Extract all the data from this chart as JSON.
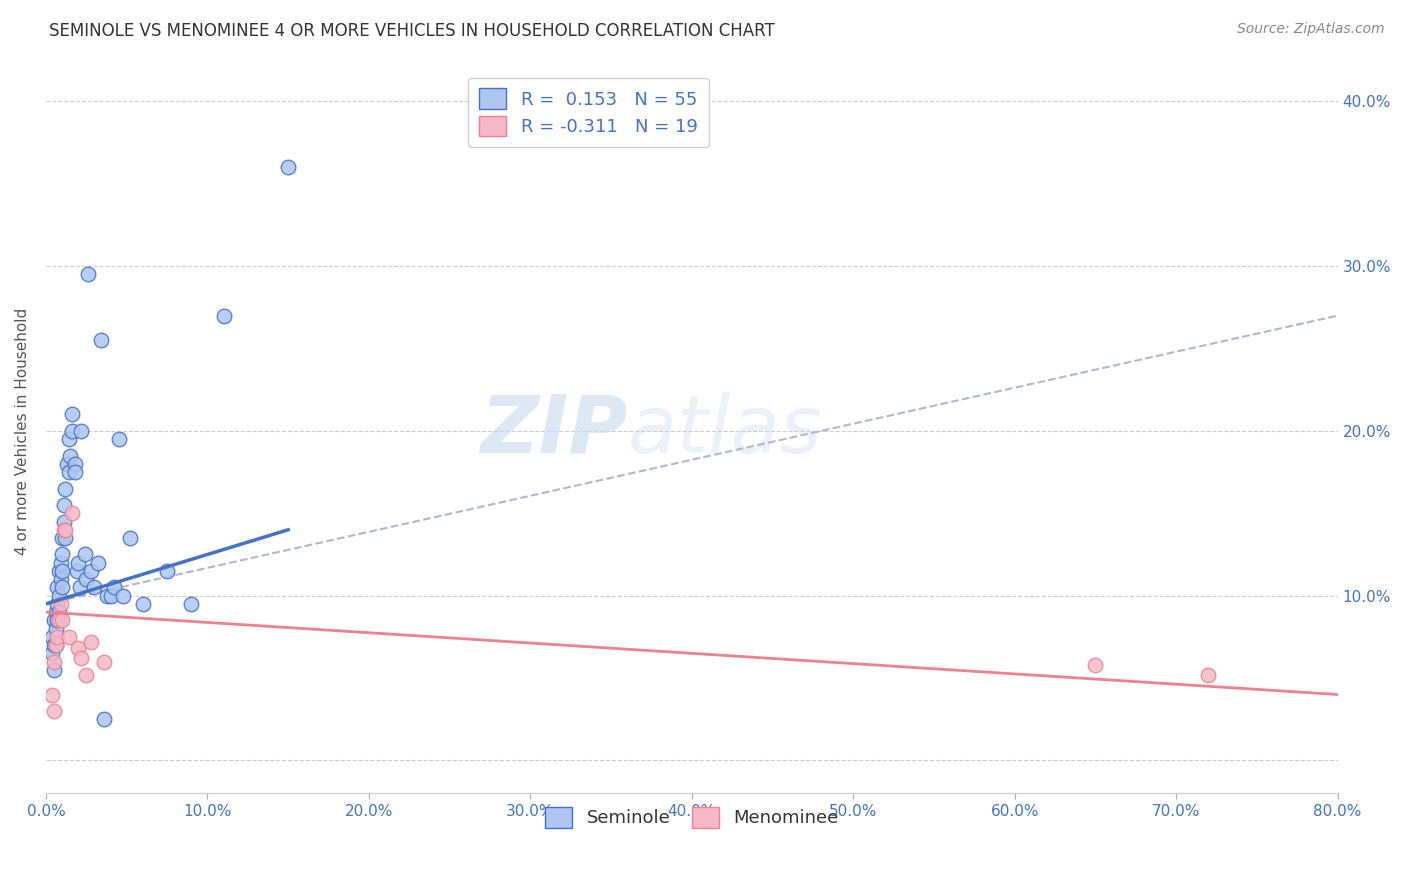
{
  "title": "SEMINOLE VS MENOMINEE 4 OR MORE VEHICLES IN HOUSEHOLD CORRELATION CHART",
  "source": "Source: ZipAtlas.com",
  "ylabel": "4 or more Vehicles in Household",
  "xlim": [
    0.0,
    0.8
  ],
  "ylim": [
    -0.02,
    0.42
  ],
  "yticks": [
    0.0,
    0.1,
    0.2,
    0.3,
    0.4
  ],
  "ytick_labels": [
    "",
    "10.0%",
    "20.0%",
    "30.0%",
    "40.0%"
  ],
  "xticks": [
    0.0,
    0.1,
    0.2,
    0.3,
    0.4,
    0.5,
    0.6,
    0.7,
    0.8
  ],
  "seminole_R": 0.153,
  "seminole_N": 55,
  "menominee_R": -0.311,
  "menominee_N": 19,
  "seminole_color": "#aec6f0",
  "menominee_color": "#f4b8c8",
  "seminole_line_color": "#4472c4",
  "menominee_line_color": "#f08090",
  "trend_line_color": "#b0b8c8",
  "watermark": "ZIPatlas",
  "seminole_x": [
    0.004,
    0.004,
    0.005,
    0.005,
    0.005,
    0.006,
    0.006,
    0.006,
    0.007,
    0.007,
    0.007,
    0.008,
    0.008,
    0.008,
    0.009,
    0.009,
    0.01,
    0.01,
    0.01,
    0.01,
    0.011,
    0.011,
    0.012,
    0.012,
    0.013,
    0.014,
    0.014,
    0.015,
    0.016,
    0.016,
    0.018,
    0.018,
    0.019,
    0.02,
    0.021,
    0.022,
    0.024,
    0.025,
    0.026,
    0.028,
    0.03,
    0.032,
    0.034,
    0.036,
    0.038,
    0.04,
    0.042,
    0.045,
    0.048,
    0.052,
    0.06,
    0.075,
    0.09,
    0.11,
    0.15
  ],
  "seminole_y": [
    0.075,
    0.065,
    0.085,
    0.07,
    0.055,
    0.09,
    0.08,
    0.07,
    0.105,
    0.095,
    0.085,
    0.115,
    0.1,
    0.09,
    0.12,
    0.11,
    0.135,
    0.125,
    0.115,
    0.105,
    0.145,
    0.155,
    0.135,
    0.165,
    0.18,
    0.195,
    0.175,
    0.185,
    0.2,
    0.21,
    0.18,
    0.175,
    0.115,
    0.12,
    0.105,
    0.2,
    0.125,
    0.11,
    0.295,
    0.115,
    0.105,
    0.12,
    0.255,
    0.025,
    0.1,
    0.1,
    0.105,
    0.195,
    0.1,
    0.135,
    0.095,
    0.115,
    0.095,
    0.27,
    0.36
  ],
  "menominee_x": [
    0.004,
    0.005,
    0.005,
    0.006,
    0.007,
    0.008,
    0.009,
    0.01,
    0.011,
    0.012,
    0.014,
    0.016,
    0.02,
    0.022,
    0.025,
    0.028,
    0.036,
    0.65,
    0.72
  ],
  "menominee_y": [
    0.04,
    0.03,
    0.06,
    0.07,
    0.075,
    0.085,
    0.095,
    0.085,
    0.14,
    0.14,
    0.075,
    0.15,
    0.068,
    0.062,
    0.052,
    0.072,
    0.06,
    0.058,
    0.052
  ],
  "sem_trend_x0": 0.0,
  "sem_trend_x1": 0.15,
  "sem_trend_y0": 0.095,
  "sem_trend_y1": 0.14,
  "men_trend_x0": 0.0,
  "men_trend_x1": 0.8,
  "men_trend_y0": 0.09,
  "men_trend_y1": 0.04,
  "dash_trend_x0": 0.0,
  "dash_trend_x1": 0.8,
  "dash_trend_y0": 0.095,
  "dash_trend_y1": 0.27
}
